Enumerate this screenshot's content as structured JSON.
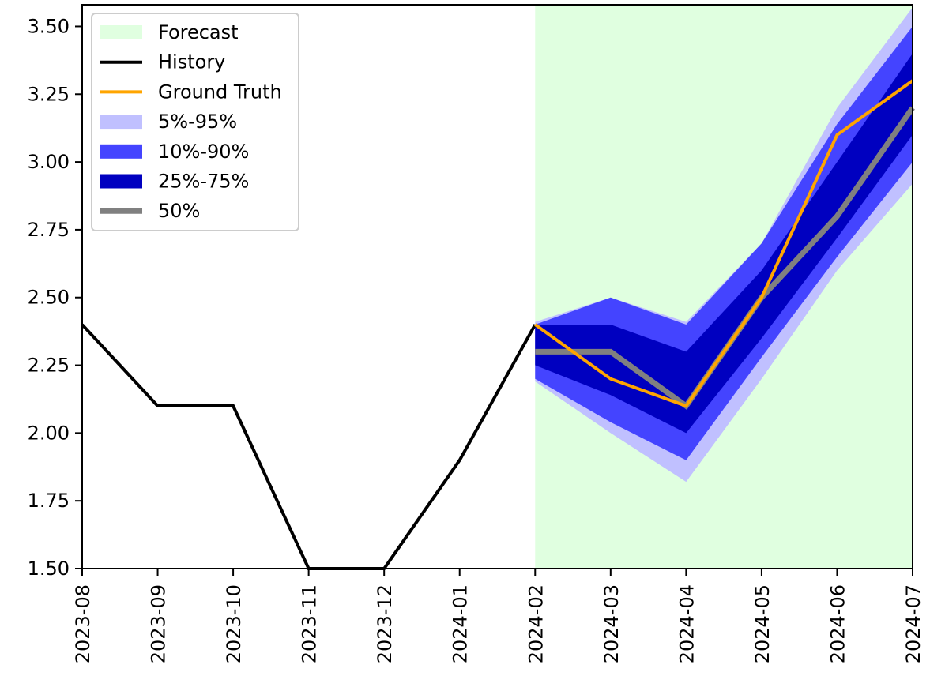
{
  "chart_data": {
    "type": "line",
    "title": "",
    "xlabel": "",
    "ylabel": "",
    "ylim": [
      1.5,
      3.58
    ],
    "yticks": [
      "1.50",
      "1.75",
      "2.00",
      "2.25",
      "2.50",
      "2.75",
      "3.00",
      "3.25",
      "3.50"
    ],
    "categories": [
      "2023-08",
      "2023-09",
      "2023-10",
      "2023-11",
      "2023-12",
      "2024-01",
      "2024-02",
      "2024-03",
      "2024-04",
      "2024-05",
      "2024-06",
      "2024-07"
    ],
    "forecast_region": {
      "label": "Forecast",
      "start": "2024-02",
      "end": "2024-07",
      "color": "#e0ffe0"
    },
    "history": {
      "label": "History",
      "color": "#000000",
      "x": [
        "2023-08",
        "2023-09",
        "2023-10",
        "2023-11",
        "2023-12",
        "2024-01",
        "2024-02"
      ],
      "values": [
        2.4,
        2.1,
        2.1,
        1.5,
        1.5,
        1.9,
        2.4
      ]
    },
    "forecast_x": [
      "2024-02",
      "2024-03",
      "2024-04",
      "2024-05",
      "2024-06",
      "2024-07"
    ],
    "bands": [
      {
        "label": "5%-95%",
        "color": "#c0c0ff",
        "lower": [
          2.19,
          2.0,
          1.82,
          2.2,
          2.6,
          2.92
        ],
        "upper": [
          2.41,
          2.5,
          2.41,
          2.7,
          3.2,
          3.57
        ]
      },
      {
        "label": "10%-90%",
        "color": "#4444ff",
        "lower": [
          2.2,
          2.04,
          1.9,
          2.28,
          2.65,
          3.0
        ],
        "upper": [
          2.4,
          2.5,
          2.4,
          2.7,
          3.14,
          3.5
        ]
      },
      {
        "label": "25%-75%",
        "color": "#0000c0",
        "lower": [
          2.25,
          2.14,
          2.0,
          2.35,
          2.72,
          3.1
        ],
        "upper": [
          2.4,
          2.4,
          2.3,
          2.6,
          3.0,
          3.4
        ]
      }
    ],
    "median": {
      "label": "50%",
      "color": "#808080",
      "values": [
        2.3,
        2.3,
        2.1,
        2.5,
        2.8,
        3.2
      ]
    },
    "ground_truth": {
      "label": "Ground Truth",
      "color": "#ffa500",
      "values": [
        2.4,
        2.2,
        2.1,
        2.5,
        3.1,
        3.3
      ]
    },
    "legend": {
      "position": "top-left",
      "entries": [
        {
          "label": "Forecast",
          "kind": "patch",
          "color": "#e0ffe0"
        },
        {
          "label": "History",
          "kind": "line",
          "color": "#000000"
        },
        {
          "label": "Ground Truth",
          "kind": "line",
          "color": "#ffa500"
        },
        {
          "label": "5%-95%",
          "kind": "patch",
          "color": "#c0c0ff"
        },
        {
          "label": "10%-90%",
          "kind": "patch",
          "color": "#4444ff"
        },
        {
          "label": "25%-75%",
          "kind": "patch",
          "color": "#0000c0"
        },
        {
          "label": "50%",
          "kind": "thickline",
          "color": "#808080"
        }
      ]
    }
  }
}
